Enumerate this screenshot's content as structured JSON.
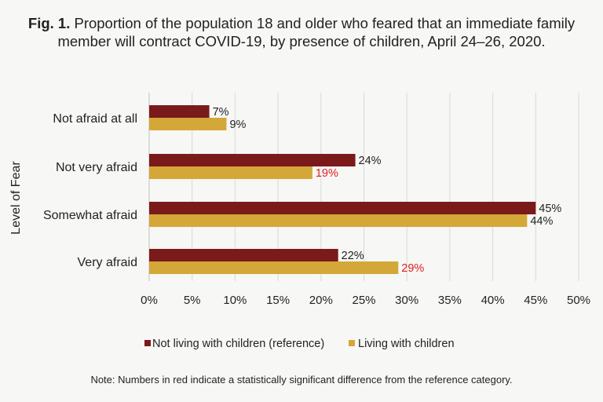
{
  "chart_data": {
    "type": "bar",
    "orientation": "horizontal",
    "title_prefix": "Fig. 1.",
    "title": "Proportion of the population 18 and older who feared that an immediate family member will contract COVID-19, by presence of children, April 24–26, 2020.",
    "xlabel": "",
    "ylabel": "Level of Fear",
    "categories": [
      "Not afraid at all",
      "Not very afraid",
      "Somewhat afraid",
      "Very afraid"
    ],
    "series": [
      {
        "name": "Not living with children (reference)",
        "color": "#7a1a1a",
        "values": [
          7,
          24,
          45,
          22
        ],
        "labels": [
          "7%",
          "24%",
          "45%",
          "22%"
        ],
        "significant": [
          false,
          false,
          false,
          false
        ]
      },
      {
        "name": "Living with children",
        "color": "#d4a838",
        "values": [
          9,
          19,
          44,
          29
        ],
        "labels": [
          "9%",
          "19%",
          "44%",
          "29%"
        ],
        "significant": [
          false,
          true,
          false,
          true
        ]
      }
    ],
    "xlim": [
      0,
      50
    ],
    "xticks": [
      "0%",
      "5%",
      "10%",
      "15%",
      "20%",
      "25%",
      "30%",
      "35%",
      "40%",
      "45%",
      "50%"
    ],
    "grid": true,
    "legend_position": "bottom",
    "significant_color": "#e02020",
    "note": "Note: Numbers in red indicate a statistically significant difference from the reference category."
  }
}
